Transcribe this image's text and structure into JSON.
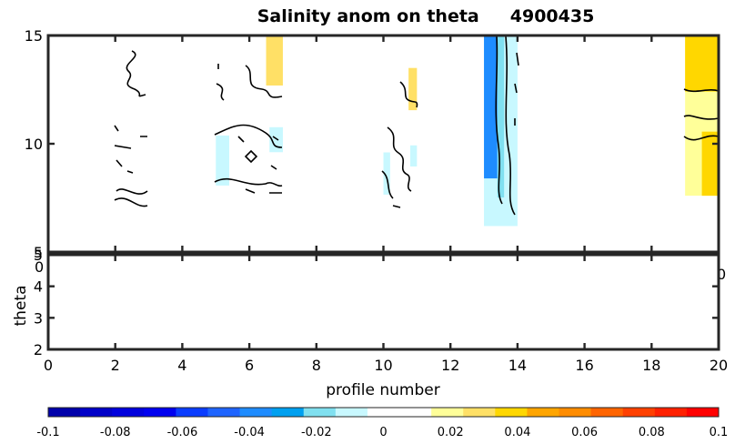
{
  "chart_data": [
    {
      "type": "heatmap",
      "title": "Salinity anom on theta",
      "float_id": "4900435",
      "xlim": [
        0,
        20
      ],
      "ylim": [
        5,
        15
      ],
      "y_ticks": [
        "5",
        "10",
        "15"
      ],
      "grid": false,
      "profile_columns": [
        {
          "x": [
            2,
            3
          ],
          "y": [
            6.8,
            14.0
          ],
          "fill": "none"
        },
        {
          "x": [
            5,
            7
          ],
          "y": [
            7.3,
            15.0
          ],
          "fill": "mixed"
        },
        {
          "x": [
            10,
            11
          ],
          "y": [
            7.0,
            13.5
          ],
          "fill": "mixed"
        },
        {
          "x": [
            13,
            14
          ],
          "y": [
            6.2,
            15.0
          ],
          "fill": "negative"
        },
        {
          "x": [
            19,
            20
          ],
          "y": [
            7.6,
            15.0
          ],
          "fill": "positive"
        }
      ],
      "partial_tick_labels": [
        "0",
        "0"
      ]
    },
    {
      "type": "heatmap",
      "xlabel": "profile number",
      "ylabel": "theta",
      "xlim": [
        0,
        20
      ],
      "ylim": [
        2,
        5
      ],
      "x_ticks": [
        "0",
        "2",
        "4",
        "6",
        "8",
        "10",
        "12",
        "14",
        "16",
        "18",
        "20"
      ],
      "y_ticks": [
        "2",
        "3",
        "4",
        "5"
      ],
      "grid": false
    },
    {
      "type": "colorbar",
      "range": [
        -0.1,
        0.1
      ],
      "tick_labels": [
        "-0.1",
        "-0.08",
        "-0.06",
        "-0.04",
        "-0.02",
        "0",
        "0.02",
        "0.04",
        "0.06",
        "0.08",
        "0.1"
      ],
      "colors": [
        "#0000aa",
        "#0000c8",
        "#0000dd",
        "#0000f0",
        "#0a3cff",
        "#1e64ff",
        "#1e8cff",
        "#00a0f0",
        "#80e0f0",
        "#c8f8ff",
        "#ffffff",
        "#ffffff",
        "#ffff99",
        "#ffe066",
        "#ffd700",
        "#ffa500",
        "#ff8c00",
        "#ff6400",
        "#ff4000",
        "#ff2000",
        "#ff0000"
      ]
    }
  ]
}
